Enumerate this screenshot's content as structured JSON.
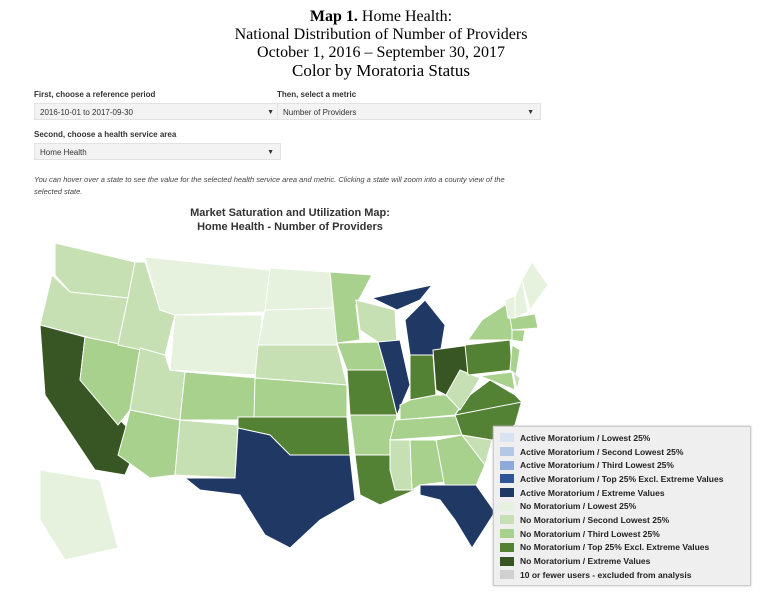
{
  "header": {
    "map_label": "Map 1.",
    "line1": "Home Health:",
    "line2": "National Distribution of Number of Providers",
    "line3": "October 1, 2016 – September 30, 2017",
    "line4": "Color by Moratoria Status"
  },
  "controls": {
    "period_label": "First, choose a reference period",
    "period_value": "2016-10-01 to 2017-09-30",
    "metric_label": "Then, select a metric",
    "metric_value": "Number of Providers",
    "area_label": "Second, choose a health service area",
    "area_value": "Home Health",
    "caret": "▼"
  },
  "note": "You can hover over a state to see the value for the selected health service area and metric. Clicking a state will zoom into a county view of the selected state.",
  "map": {
    "title1": "Market Saturation and Utilization Map:",
    "title2": "Home Health - Number of Providers"
  },
  "colors": {
    "a1": "#d9e2f1",
    "a2": "#b4c7e7",
    "a3": "#8eaadb",
    "a4": "#2f5597",
    "a5": "#1f3864",
    "n1": "#e6f2dd",
    "n2": "#c6e0b4",
    "n3": "#a9d18e",
    "n4": "#548235",
    "n5": "#375623",
    "na": "#d0d0d0"
  },
  "legend": [
    {
      "key": "a1",
      "label": "Active Moratorium / Lowest 25%"
    },
    {
      "key": "a2",
      "label": "Active Moratorium / Second Lowest 25%"
    },
    {
      "key": "a3",
      "label": "Active Moratorium / Third Lowest 25%"
    },
    {
      "key": "a4",
      "label": "Active Moratorium / Top 25% Excl. Extreme Values"
    },
    {
      "key": "a5",
      "label": "Active Moratorium / Extreme Values"
    },
    {
      "key": "n1",
      "label": "No Moratorium / Lowest 25%"
    },
    {
      "key": "n2",
      "label": "No Moratorium / Second Lowest 25%"
    },
    {
      "key": "n3",
      "label": "No Moratorium / Third Lowest 25%"
    },
    {
      "key": "n4",
      "label": "No Moratorium / Top 25% Excl. Extreme Values"
    },
    {
      "key": "n5",
      "label": "No Moratorium / Extreme Values"
    },
    {
      "key": "na",
      "label": "10 or fewer users - excluded from analysis"
    }
  ],
  "states": {
    "WA": "n2",
    "OR": "n2",
    "CA": "n5",
    "NV": "n3",
    "ID": "n2",
    "MT": "n1",
    "WY": "n1",
    "UT": "n2",
    "AZ": "n3",
    "CO": "n3",
    "NM": "n2",
    "ND": "n1",
    "SD": "n1",
    "NE": "n2",
    "KS": "n3",
    "OK": "n4",
    "TX": "a5",
    "MN": "n3",
    "IA": "n3",
    "MO": "n4",
    "AR": "n3",
    "LA": "n4",
    "WI": "n2",
    "IL": "a5",
    "MI": "a5",
    "IN": "n4",
    "OH": "n5",
    "KY": "n3",
    "TN": "n3",
    "MS": "n2",
    "AL": "n3",
    "GA": "n3",
    "FL": "a5",
    "SC": "n2",
    "NC": "n4",
    "VA": "n4",
    "WV": "n2",
    "PA": "n4",
    "NY": "n3",
    "NJ": "n3",
    "MD": "n3",
    "DE": "n2",
    "CT": "n3",
    "MA": "n3",
    "VT": "n1",
    "NH": "n1",
    "ME": "n1",
    "AK": "n1"
  }
}
